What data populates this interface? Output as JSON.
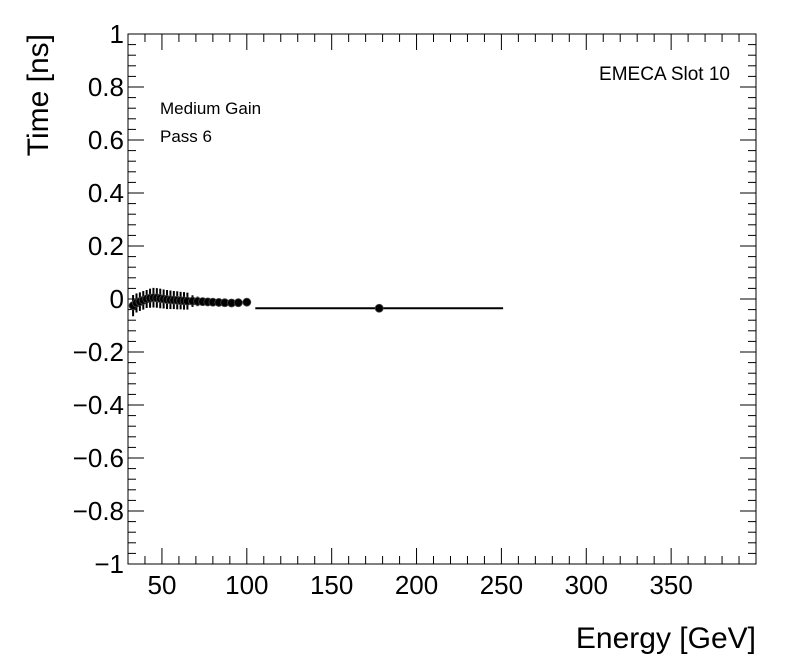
{
  "chart_data": {
    "type": "scatter",
    "title": "",
    "xlabel": "Energy [GeV]",
    "ylabel": "Time [ns]",
    "xlim": [
      30,
      400
    ],
    "ylim": [
      -1,
      1
    ],
    "xticks": [
      50,
      100,
      150,
      200,
      250,
      300,
      350
    ],
    "yticks": [
      -1,
      -0.8,
      -0.6,
      -0.4,
      -0.2,
      0,
      0.2,
      0.4,
      0.6,
      0.8,
      1
    ],
    "xtick_labels": [
      "50",
      "100",
      "150",
      "200",
      "250",
      "300",
      "350"
    ],
    "ytick_labels": [
      "−1",
      "−0.8",
      "−0.6",
      "−0.4",
      "−0.2",
      "0",
      "0.2",
      "0.4",
      "0.6",
      "0.8",
      "1"
    ],
    "grid": false,
    "annotations": {
      "slot": "EMECA Slot 10",
      "gain": "Medium Gain",
      "pass": "Pass 6"
    },
    "marker_color": "#000000",
    "series": [
      {
        "points": [
          {
            "x": 33.0,
            "y": -0.025,
            "xerr": 1.0,
            "yerr": 0.04
          },
          {
            "x": 35.0,
            "y": -0.015,
            "xerr": 1.0,
            "yerr": 0.036
          },
          {
            "x": 37.0,
            "y": -0.01,
            "xerr": 1.0,
            "yerr": 0.035
          },
          {
            "x": 39.0,
            "y": -0.005,
            "xerr": 1.0,
            "yerr": 0.035
          },
          {
            "x": 41.0,
            "y": 0.0,
            "xerr": 1.0,
            "yerr": 0.034
          },
          {
            "x": 43.0,
            "y": 0.003,
            "xerr": 1.0,
            "yerr": 0.036
          },
          {
            "x": 45.0,
            "y": 0.005,
            "xerr": 1.0,
            "yerr": 0.037
          },
          {
            "x": 47.0,
            "y": 0.004,
            "xerr": 1.0,
            "yerr": 0.037
          },
          {
            "x": 49.0,
            "y": 0.002,
            "xerr": 1.0,
            "yerr": 0.037
          },
          {
            "x": 51.0,
            "y": 0.0,
            "xerr": 1.0,
            "yerr": 0.036
          },
          {
            "x": 53.0,
            "y": -0.002,
            "xerr": 1.0,
            "yerr": 0.036
          },
          {
            "x": 55.0,
            "y": -0.003,
            "xerr": 1.0,
            "yerr": 0.035
          },
          {
            "x": 57.0,
            "y": -0.004,
            "xerr": 1.0,
            "yerr": 0.034
          },
          {
            "x": 59.0,
            "y": -0.005,
            "xerr": 1.0,
            "yerr": 0.034
          },
          {
            "x": 61.0,
            "y": -0.006,
            "xerr": 1.0,
            "yerr": 0.033
          },
          {
            "x": 63.0,
            "y": -0.007,
            "xerr": 1.0,
            "yerr": 0.033
          },
          {
            "x": 65.0,
            "y": -0.008,
            "xerr": 1.0,
            "yerr": 0.032
          },
          {
            "x": 68.0,
            "y": -0.008,
            "xerr": 1.5,
            "yerr": 0.022
          },
          {
            "x": 71.0,
            "y": -0.009,
            "xerr": 1.5,
            "yerr": 0.018
          },
          {
            "x": 74.0,
            "y": -0.01,
            "xerr": 1.5,
            "yerr": 0.016
          },
          {
            "x": 77.0,
            "y": -0.011,
            "xerr": 1.5,
            "yerr": 0.014
          },
          {
            "x": 80.0,
            "y": -0.012,
            "xerr": 1.5,
            "yerr": 0.013
          },
          {
            "x": 83.5,
            "y": -0.013,
            "xerr": 1.5,
            "yerr": 0.011
          },
          {
            "x": 87.0,
            "y": -0.014,
            "xerr": 1.5,
            "yerr": 0.01
          },
          {
            "x": 91.0,
            "y": -0.015,
            "xerr": 2.0,
            "yerr": 0.009
          },
          {
            "x": 95.0,
            "y": -0.014,
            "xerr": 2.0,
            "yerr": 0.008
          },
          {
            "x": 100.0,
            "y": -0.012,
            "xerr": 2.5,
            "yerr": 0.008
          },
          {
            "x": 178.0,
            "y": -0.035,
            "xerr": 73.0,
            "yerr": 0.008
          }
        ]
      }
    ]
  }
}
